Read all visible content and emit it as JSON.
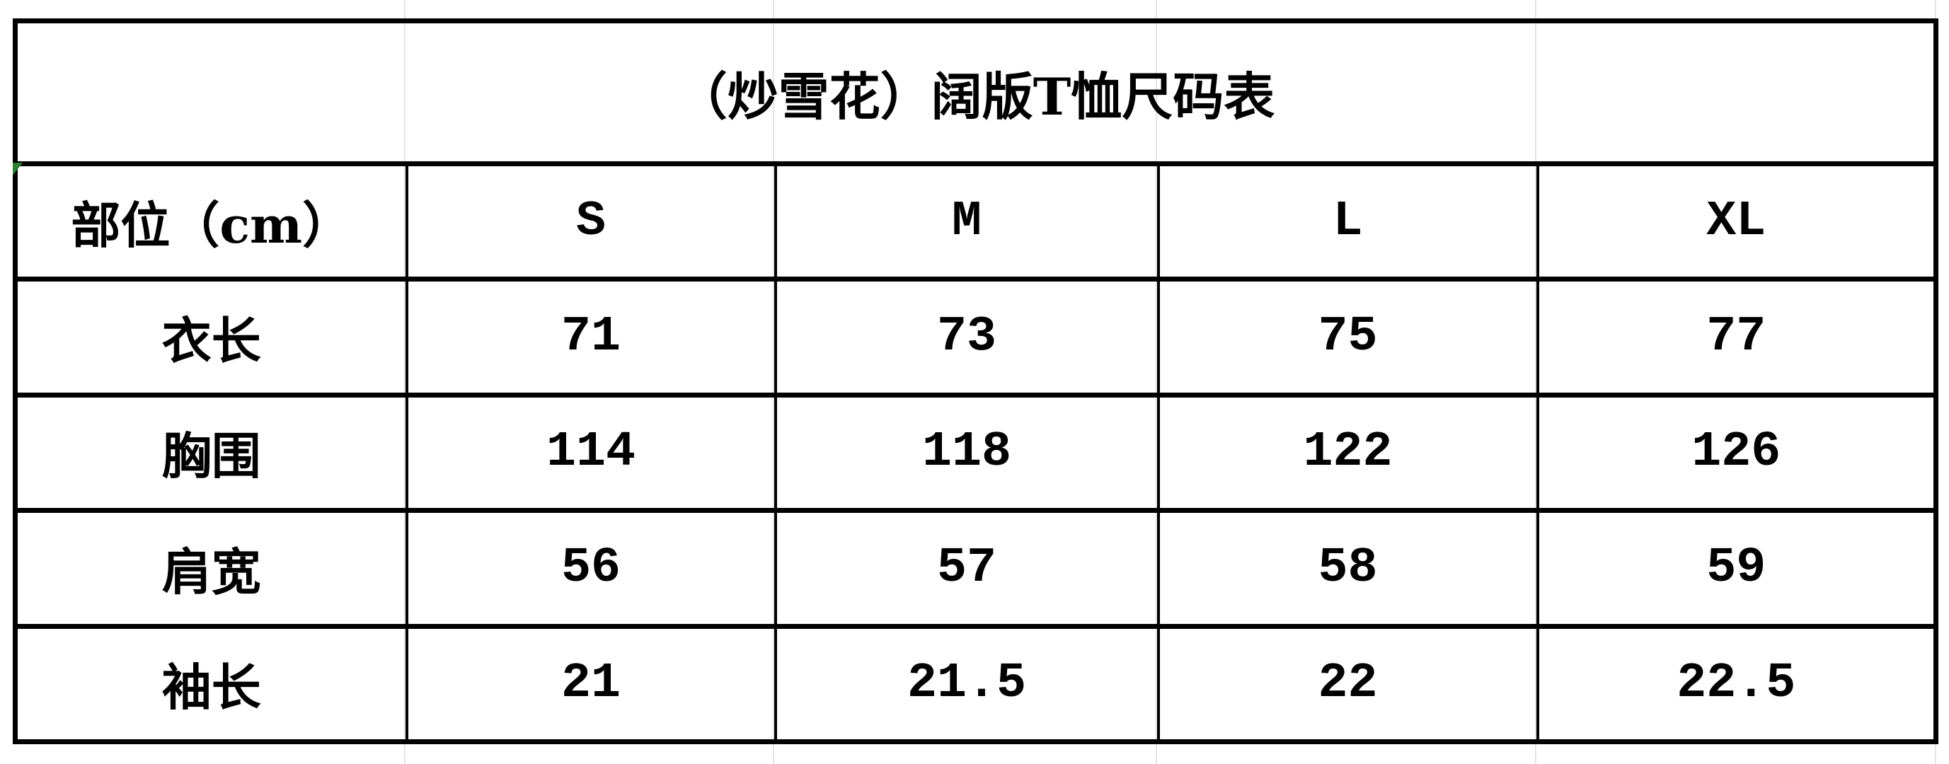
{
  "title": "（炒雪花）阔版T恤尺码表",
  "header": [
    "部位（cm）",
    "S",
    "M",
    "L",
    "XL"
  ],
  "rows": [
    {
      "label": "衣长",
      "values": [
        "71",
        "73",
        "75",
        "77"
      ]
    },
    {
      "label": "胸围",
      "values": [
        "114",
        "118",
        "122",
        "126"
      ]
    },
    {
      "label": "肩宽",
      "values": [
        "56",
        "57",
        "58",
        "59"
      ]
    },
    {
      "label": "袖长",
      "values": [
        "21",
        "21.5",
        "22",
        "22.5"
      ]
    }
  ]
}
